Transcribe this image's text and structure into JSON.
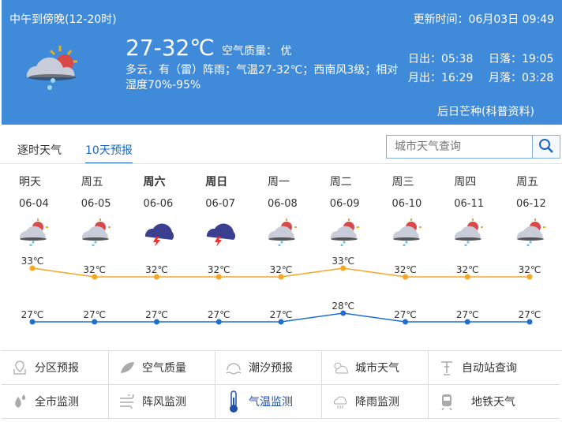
{
  "header": {
    "period": "中午到傍晚(12-20时)",
    "update_time": "更新时间：06月03日 09:49",
    "temp": "27-32℃",
    "air_quality": "空气质量： 优",
    "desc": "多云，有（雷）阵雨；气温27-32℃；西南风3级；相对湿度70%-95%",
    "sunrise": "日出：05:38",
    "sunset": "日落：19:05",
    "moonrise": "月出：16:29",
    "moonset": "月落：03:28",
    "link": "后日芒种(科普资料)",
    "icon": "partly-cloudy-rain-icon",
    "bg_color": "#3f8ad9"
  },
  "tabs": [
    {
      "label": "逐时天气"
    },
    {
      "label": "10天预报",
      "active": true
    }
  ],
  "search": {
    "placeholder": "城市天气查询",
    "icon": "search-icon"
  },
  "forecast": [
    {
      "day": "明天",
      "date": "06-04",
      "icon": "partly-cloudy-rain",
      "bold": false
    },
    {
      "day": "周五",
      "date": "06-05",
      "icon": "partly-cloudy-rain",
      "bold": false
    },
    {
      "day": "周六",
      "date": "06-06",
      "icon": "thunderstorm",
      "bold": true
    },
    {
      "day": "周日",
      "date": "06-07",
      "icon": "thunderstorm",
      "bold": true
    },
    {
      "day": "周一",
      "date": "06-08",
      "icon": "partly-cloudy-rain",
      "bold": false
    },
    {
      "day": "周二",
      "date": "06-09",
      "icon": "partly-cloudy-rain",
      "bold": false
    },
    {
      "day": "周三",
      "date": "06-10",
      "icon": "partly-cloudy-rain",
      "bold": false
    },
    {
      "day": "周四",
      "date": "06-11",
      "icon": "partly-cloudy-rain",
      "bold": false
    },
    {
      "day": "周五",
      "date": "06-12",
      "icon": "partly-cloudy-rain",
      "bold": false
    }
  ],
  "chart_data": {
    "type": "line",
    "categories": [
      "06-04",
      "06-05",
      "06-06",
      "06-07",
      "06-08",
      "06-09",
      "06-10",
      "06-11",
      "06-12"
    ],
    "unit": "℃",
    "series": [
      {
        "values": [
          33,
          32,
          32,
          32,
          32,
          33,
          32,
          32,
          32
        ],
        "color": "#f5a623"
      },
      {
        "values": [
          27,
          27,
          27,
          27,
          27,
          28,
          27,
          27,
          27
        ],
        "color": "#1f6fd0"
      }
    ]
  },
  "links": [
    {
      "label": "分区预报",
      "icon": "map-pin-icon"
    },
    {
      "label": "空气质量",
      "icon": "leaf-icon"
    },
    {
      "label": "潮汐预报",
      "icon": "wave-icon"
    },
    {
      "label": "城市天气",
      "icon": "sun-cloud-icon"
    },
    {
      "label": "自动站查询",
      "icon": "weather-station-icon"
    },
    {
      "label": "全市监测",
      "icon": "water-drop-icon"
    },
    {
      "label": "阵风监测",
      "icon": "wind-icon"
    },
    {
      "label": "气温监测",
      "icon": "thermometer-icon",
      "active": true
    },
    {
      "label": "降雨监测",
      "icon": "rain-cloud-icon"
    },
    {
      "label": "地铁天气",
      "icon": "train-icon"
    }
  ]
}
